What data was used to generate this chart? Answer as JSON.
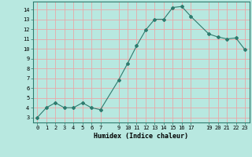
{
  "x": [
    0,
    1,
    2,
    3,
    4,
    5,
    6,
    7,
    9,
    10,
    11,
    12,
    13,
    14,
    15,
    16,
    17,
    19,
    20,
    21,
    22,
    23
  ],
  "y": [
    3,
    4,
    4.5,
    4,
    4,
    4.5,
    4,
    3.8,
    6.8,
    8.5,
    10.3,
    11.9,
    13,
    13,
    14.2,
    14.3,
    13.3,
    11.5,
    11.2,
    11,
    11.1,
    9.9
  ],
  "line_color": "#2e7b6e",
  "marker": "D",
  "marker_size": 2.0,
  "bg_color": "#b8e8e0",
  "grid_color": "#e8a8a8",
  "xlabel": "Humidex (Indice chaleur)",
  "xlim": [
    -0.5,
    23.5
  ],
  "ylim": [
    2.5,
    14.8
  ],
  "yticks": [
    3,
    4,
    5,
    6,
    7,
    8,
    9,
    10,
    11,
    12,
    13,
    14
  ],
  "xticks": [
    0,
    1,
    2,
    3,
    4,
    5,
    6,
    7,
    9,
    10,
    11,
    12,
    13,
    14,
    15,
    16,
    17,
    19,
    20,
    21,
    22,
    23
  ],
  "xtick_labels": [
    "0",
    "1",
    "2",
    "3",
    "4",
    "5",
    "6",
    "7",
    "9",
    "10",
    "11",
    "12",
    "13",
    "14",
    "15",
    "16",
    "17",
    "19",
    "20",
    "21",
    "22",
    "23"
  ]
}
